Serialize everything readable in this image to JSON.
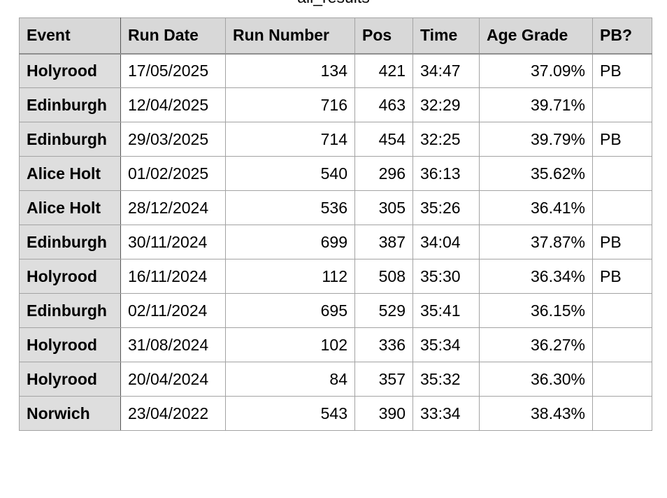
{
  "title": "all_results",
  "table": {
    "headers": [
      "Event",
      "Run Date",
      "Run Number",
      "Pos",
      "Time",
      "Age Grade",
      "PB?"
    ],
    "rows": [
      [
        "Holyrood",
        "17/05/2025",
        "134",
        "421",
        "34:47",
        "37.09%",
        "PB"
      ],
      [
        "Edinburgh",
        "12/04/2025",
        "716",
        "463",
        "32:29",
        "39.71%",
        ""
      ],
      [
        "Edinburgh",
        "29/03/2025",
        "714",
        "454",
        "32:25",
        "39.79%",
        "PB"
      ],
      [
        "Alice Holt",
        "01/02/2025",
        "540",
        "296",
        "36:13",
        "35.62%",
        ""
      ],
      [
        "Alice Holt",
        "28/12/2024",
        "536",
        "305",
        "35:26",
        "36.41%",
        ""
      ],
      [
        "Edinburgh",
        "30/11/2024",
        "699",
        "387",
        "34:04",
        "37.87%",
        "PB"
      ],
      [
        "Holyrood",
        "16/11/2024",
        "112",
        "508",
        "35:30",
        "36.34%",
        "PB"
      ],
      [
        "Edinburgh",
        "02/11/2024",
        "695",
        "529",
        "35:41",
        "36.15%",
        ""
      ],
      [
        "Holyrood",
        "31/08/2024",
        "102",
        "336",
        "35:34",
        "36.27%",
        ""
      ],
      [
        "Holyrood",
        "20/04/2024",
        "84",
        "357",
        "35:32",
        "36.30%",
        ""
      ],
      [
        "Norwich",
        "23/04/2022",
        "543",
        "390",
        "33:34",
        "38.43%",
        ""
      ]
    ]
  }
}
